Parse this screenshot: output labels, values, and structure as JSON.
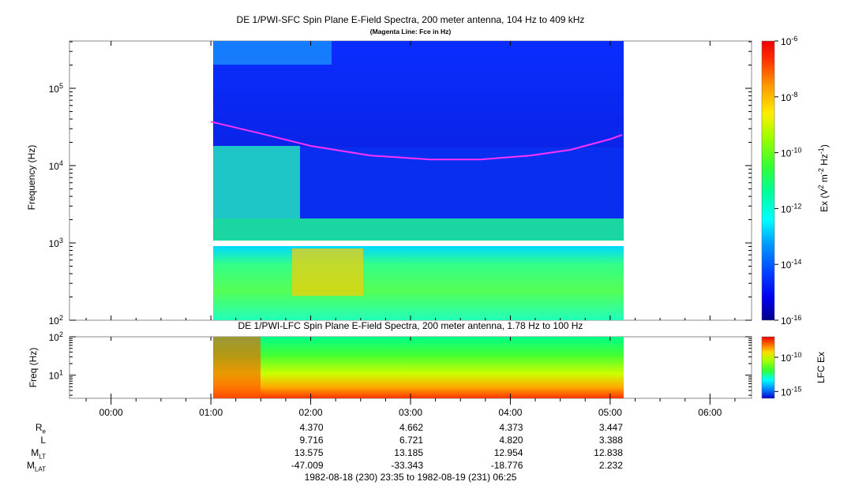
{
  "chart_data": [
    {
      "type": "heatmap",
      "title": "DE 1/PWI-SFC  Spin Plane E-Field Spectra, 200 meter antenna, 104 Hz to 409 kHz",
      "subtitle": "(Magenta Line: Fce in Hz)",
      "ylabel": "Frequency (Hz)",
      "yscale": "log",
      "ylim": [
        100,
        409000
      ],
      "y_ticks": [
        {
          "value": 100,
          "base": "10",
          "exp": "2"
        },
        {
          "value": 1000,
          "base": "10",
          "exp": "3"
        },
        {
          "value": 10000,
          "base": "10",
          "exp": "4"
        },
        {
          "value": 100000,
          "base": "10",
          "exp": "5"
        }
      ],
      "colorbar": {
        "label": "Ex (V² m⁻² Hz⁻¹)",
        "label_parts": [
          "Ex (V",
          "2",
          " m",
          "-2",
          " Hz",
          "-1",
          ")"
        ],
        "scale": "log",
        "range": [
          1e-16,
          1e-06
        ],
        "ticks": [
          {
            "value": 1e-06,
            "base": "10",
            "exp": "-6"
          },
          {
            "value": 1e-08,
            "base": "10",
            "exp": "-8"
          },
          {
            "value": 1e-10,
            "base": "10",
            "exp": "-10"
          },
          {
            "value": 1e-12,
            "base": "10",
            "exp": "-12"
          },
          {
            "value": 1e-14,
            "base": "10",
            "exp": "-14"
          },
          {
            "value": 1e-16,
            "base": "10",
            "exp": "-16"
          }
        ]
      },
      "data_coverage_hours": [
        1.0,
        5.12
      ],
      "fce_line": {
        "color": "#ff33ff",
        "x_hours": [
          1.0,
          1.5,
          2.0,
          2.6,
          3.2,
          3.7,
          4.2,
          4.6,
          5.0,
          5.12
        ],
        "y_hz": [
          37000,
          26000,
          18000,
          13500,
          12000,
          12000,
          13500,
          16000,
          22000,
          25000
        ]
      }
    },
    {
      "type": "heatmap",
      "title": "DE 1/PWI-LFC  Spin Plane E-Field Spectra, 200 meter antenna, 1.78 Hz to 100 Hz",
      "ylabel": "Freq (Hz)",
      "yscale": "log",
      "ylim": [
        2.5,
        100
      ],
      "y_ticks": [
        {
          "value": 10,
          "base": "10",
          "exp": "1"
        },
        {
          "value": 100,
          "base": "10",
          "exp": "2"
        }
      ],
      "colorbar": {
        "label": "LFC Ex",
        "scale": "log",
        "range": [
          1e-16,
          1e-07
        ],
        "ticks": [
          {
            "value": 1e-10,
            "base": "10",
            "exp": "-10"
          },
          {
            "value": 1e-15,
            "base": "10",
            "exp": "-15"
          }
        ]
      },
      "data_coverage_hours": [
        1.0,
        5.12
      ]
    }
  ],
  "time_axis": {
    "range_hours": [
      -0.4167,
      6.4167
    ],
    "major_ticks": [
      {
        "hour": 0,
        "label": "00:00"
      },
      {
        "hour": 1,
        "label": "01:00"
      },
      {
        "hour": 2,
        "label": "02:00"
      },
      {
        "hour": 3,
        "label": "03:00"
      },
      {
        "hour": 4,
        "label": "04:00"
      },
      {
        "hour": 5,
        "label": "05:00"
      },
      {
        "hour": 6,
        "label": "06:00"
      }
    ]
  },
  "ephemeris": {
    "rows": [
      {
        "name": "R",
        "sub": "e",
        "values": [
          "4.370",
          "4.662",
          "4.373",
          "3.447"
        ]
      },
      {
        "name": "L",
        "sub": "",
        "values": [
          "9.716",
          "6.721",
          "4.820",
          "3.388"
        ]
      },
      {
        "name": "M",
        "sub": "LT",
        "values": [
          "13.575",
          "13.185",
          "12.954",
          "12.838"
        ]
      },
      {
        "name": "M",
        "sub": "LAT",
        "values": [
          "-47.009",
          "-33.343",
          "-18.776",
          "2.232"
        ]
      }
    ],
    "value_hours": [
      2,
      3,
      4,
      5
    ],
    "time_range_text": "1982-08-18 (230) 23:35 to 1982-08-19 (231) 06:25"
  }
}
